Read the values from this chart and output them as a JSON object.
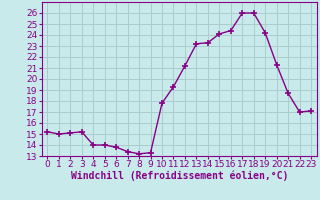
{
  "x": [
    0,
    1,
    2,
    3,
    4,
    5,
    6,
    7,
    8,
    9,
    10,
    11,
    12,
    13,
    14,
    15,
    16,
    17,
    18,
    19,
    20,
    21,
    22,
    23
  ],
  "y": [
    15.2,
    15.0,
    15.1,
    15.2,
    14.0,
    14.0,
    13.8,
    13.4,
    13.2,
    13.3,
    17.8,
    19.3,
    21.2,
    23.2,
    23.3,
    24.1,
    24.4,
    26.0,
    26.0,
    24.2,
    21.3,
    18.7,
    17.0,
    17.1
  ],
  "line_color": "#880088",
  "marker": "+",
  "markersize": 4,
  "markeredgewidth": 1.2,
  "linewidth": 1,
  "bg_color": "#c8eaea",
  "grid_color": "#aacccc",
  "xlabel": "Windchill (Refroidissement éolien,°C)",
  "xlabel_fontsize": 7,
  "tick_fontsize": 6.5,
  "ylim": [
    13,
    27
  ],
  "yticks": [
    13,
    14,
    15,
    16,
    17,
    18,
    19,
    20,
    21,
    22,
    23,
    24,
    25,
    26
  ],
  "xlim": [
    -0.5,
    23.5
  ],
  "xticks": [
    0,
    1,
    2,
    3,
    4,
    5,
    6,
    7,
    8,
    9,
    10,
    11,
    12,
    13,
    14,
    15,
    16,
    17,
    18,
    19,
    20,
    21,
    22,
    23
  ]
}
